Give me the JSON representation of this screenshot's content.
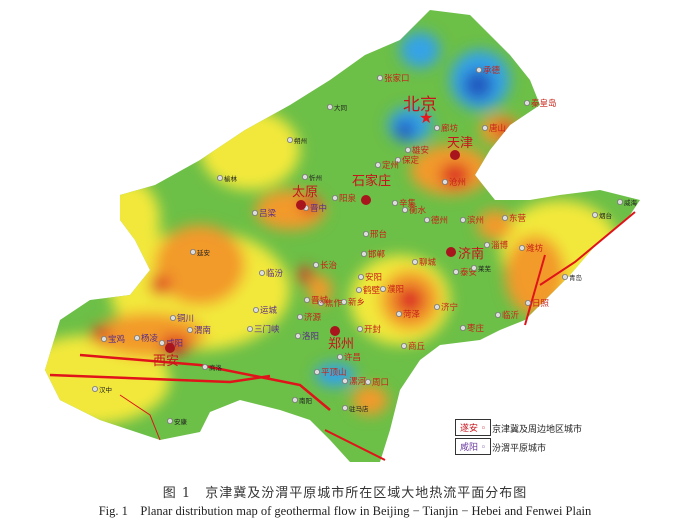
{
  "colors": {
    "low_blue": "#2258c0",
    "blue": "#35a3e6",
    "green": "#6cbf47",
    "light_green": "#9fd040",
    "yellow": "#f2e83a",
    "orange": "#f29a2b",
    "red": "#dd3326",
    "fault": "#e0131a",
    "capital": "#a8151c"
  },
  "capitals": [
    {
      "name": "北京",
      "icon": "star-icon"
    },
    {
      "name": "天津"
    },
    {
      "name": "石家庄"
    },
    {
      "name": "太原"
    },
    {
      "name": "济南"
    },
    {
      "name": "郑州"
    },
    {
      "name": "西安"
    }
  ],
  "cities_region": [
    "张家口",
    "承德",
    "秦皇岛",
    "唐山",
    "廊坊",
    "雄安",
    "保定",
    "定州",
    "沧州",
    "辛集",
    "衡水",
    "德州",
    "滨州",
    "东营",
    "阳泉",
    "晋中",
    "邢台",
    "邯郸",
    "长治",
    "安阳",
    "鹤壁",
    "新乡",
    "焦作",
    "晋城",
    "濮阳",
    "聊城",
    "泰安",
    "淄博",
    "潍坊",
    "日照",
    "临沂",
    "枣庄",
    "济宁",
    "菏泽",
    "开封",
    "商丘",
    "许昌",
    "平顶山",
    "漯河",
    "周口",
    "洛阳",
    "济源",
    "三门峡",
    "运城",
    "临汾",
    "铜川",
    "渭南",
    "咸阳",
    "杨凌",
    "宝鸡",
    "吕梁"
  ],
  "cities_other": [
    "大同",
    "朔州",
    "忻州",
    "榆林",
    "延安",
    "商洛",
    "汉中",
    "安康",
    "南阳",
    "驻马店",
    "莱芜",
    "烟台",
    "威海",
    "青岛"
  ],
  "legend": [
    {
      "sample": "遂安",
      "label": "京津冀及周边地区城市"
    },
    {
      "sample": "咸阳",
      "label": "汾渭平原城市"
    }
  ],
  "caption": {
    "cn": "图 1　京津冀及汾渭平原城市所在区域大地热流平面分布图",
    "en": "Fig. 1　Planar distribution map of geothermal flow in Beijing − Tianjin − Hebei and Fenwei Plain"
  }
}
